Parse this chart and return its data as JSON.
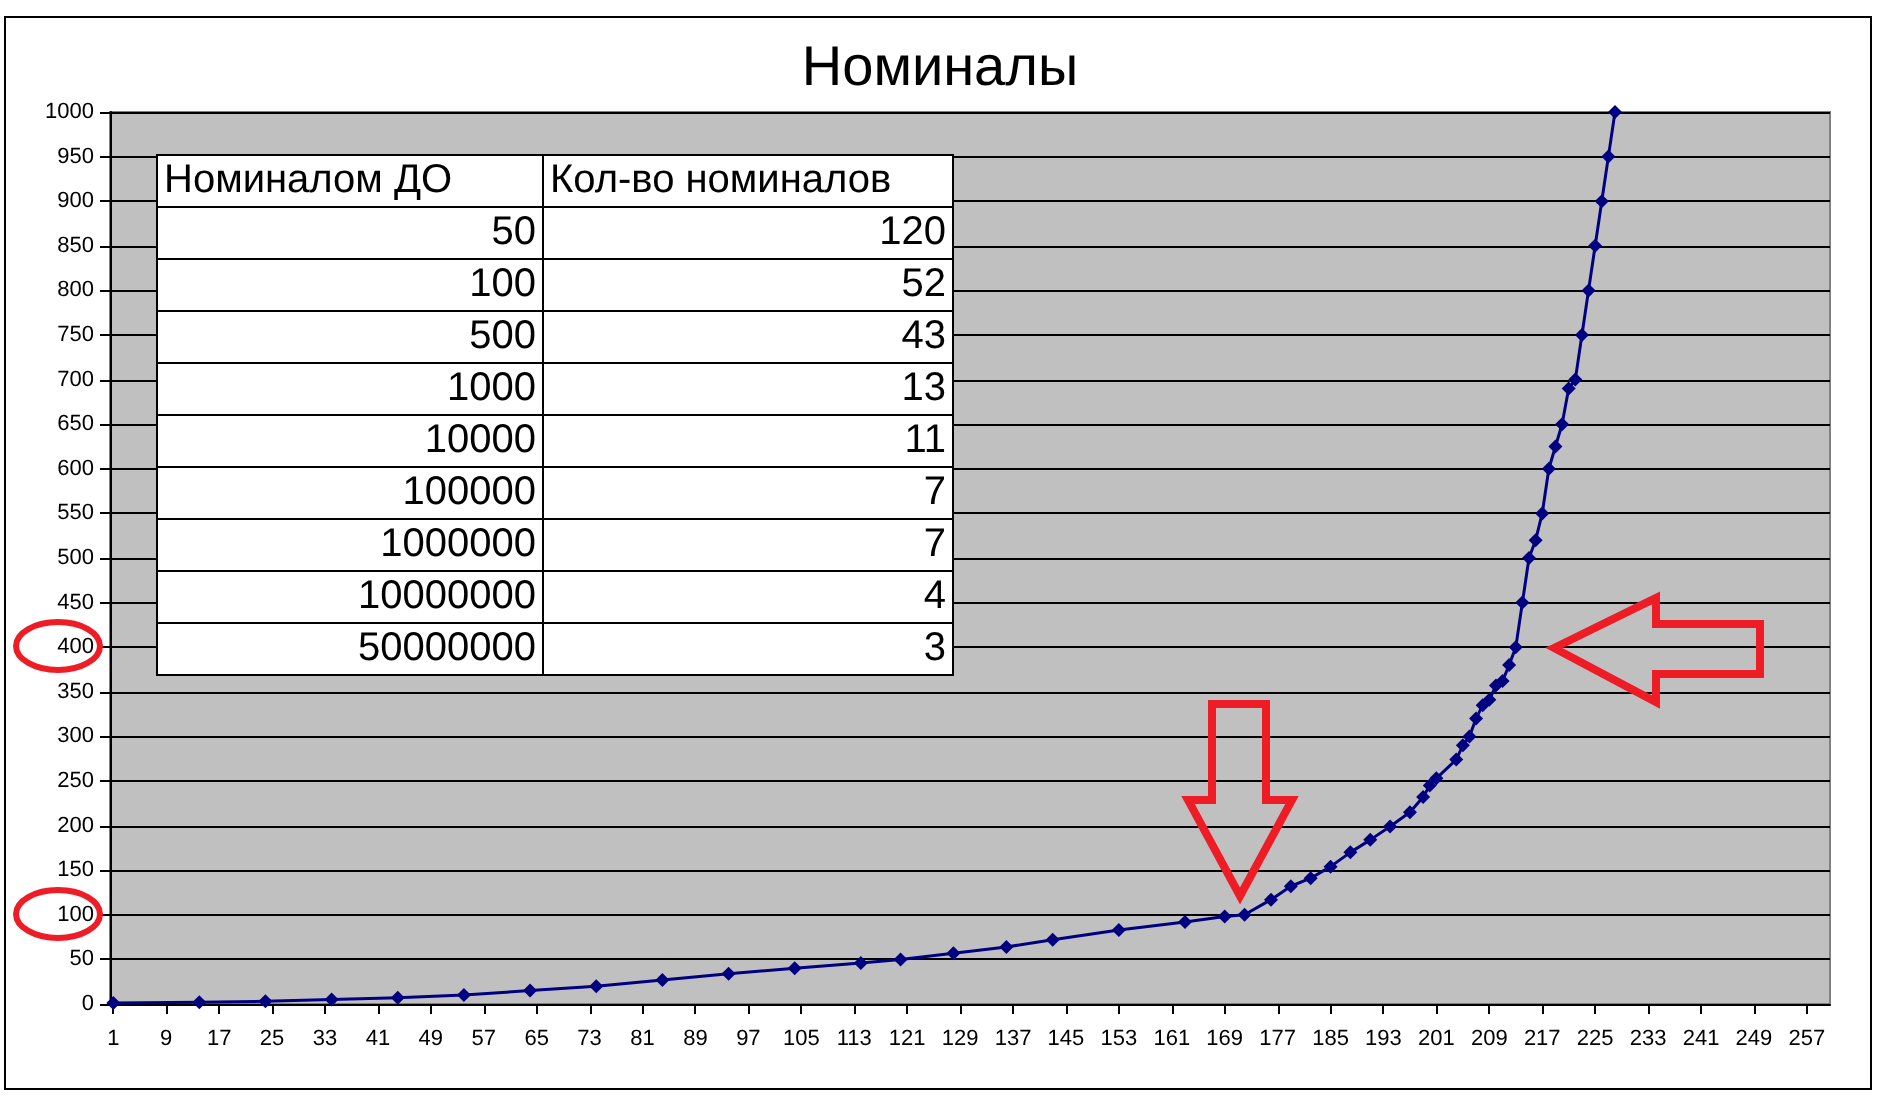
{
  "chart_data": [
    {
      "type": "line",
      "title": "Номиналы",
      "x": [
        1,
        14,
        24,
        34,
        44,
        54,
        64,
        74,
        84,
        94,
        104,
        114,
        120,
        128,
        136,
        143,
        153,
        163,
        169,
        172,
        176,
        179,
        182,
        185,
        188,
        191,
        194,
        197,
        199,
        200,
        201,
        204,
        205,
        206,
        207,
        208,
        209,
        210,
        211,
        212,
        213,
        214,
        215,
        216,
        217,
        218,
        219,
        220,
        221,
        222,
        223,
        224,
        225,
        226,
        227,
        228
      ],
      "values": [
        1,
        2,
        3,
        5,
        7,
        10,
        15,
        20,
        27,
        34,
        40,
        46,
        50,
        57,
        64,
        72,
        83,
        92,
        98,
        100,
        117,
        132,
        141,
        154,
        170,
        184,
        199,
        215,
        232,
        245,
        253,
        274,
        290,
        300,
        320,
        335,
        341,
        357,
        362,
        380,
        400,
        450,
        500,
        520,
        550,
        600,
        625,
        650,
        690,
        700,
        750,
        800,
        850,
        900,
        950,
        1000
      ],
      "color": "#000080",
      "marker": "diamond",
      "line_style": "solid",
      "grid": "y",
      "xlim": [
        0.5,
        260.5
      ],
      "xticks": [
        1,
        9,
        17,
        25,
        33,
        41,
        49,
        57,
        65,
        73,
        81,
        89,
        97,
        105,
        113,
        121,
        129,
        137,
        145,
        153,
        161,
        169,
        177,
        185,
        193,
        201,
        209,
        217,
        225,
        233,
        241,
        249,
        257
      ],
      "ylim": [
        0,
        1000
      ],
      "yticks": [
        0,
        50,
        100,
        150,
        200,
        250,
        300,
        350,
        400,
        450,
        500,
        550,
        600,
        650,
        700,
        750,
        800,
        850,
        900,
        950,
        1000
      ]
    },
    {
      "type": "other",
      "xlabel": "Номиналом ДО",
      "ylabel": "Кол-во номиналов",
      "categories": [
        "50",
        "100",
        "500",
        "1000",
        "10000",
        "100000",
        "1000000",
        "10000000",
        "50000000"
      ],
      "values": [
        120,
        52,
        43,
        13,
        11,
        7,
        7,
        4,
        3
      ],
      "data_labels": true
    }
  ]
}
